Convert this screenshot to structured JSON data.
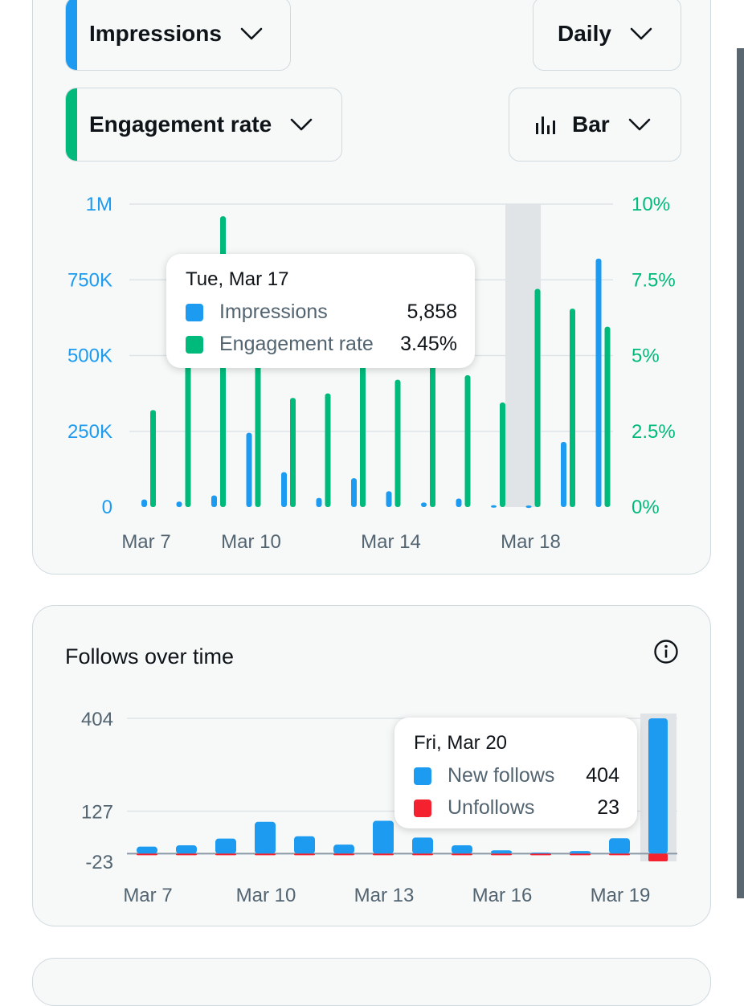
{
  "controls": {
    "metric_primary": {
      "label": "Impressions",
      "accent": "#1d9bf0"
    },
    "metric_secondary": {
      "label": "Engagement rate",
      "accent": "#00ba7c"
    },
    "interval": {
      "label": "Daily"
    },
    "chart_type": {
      "label": "Bar",
      "icon": "bar-chart-icon"
    }
  },
  "tooltip1": {
    "date": "Tue, Mar 17",
    "rows": [
      {
        "name": "Impressions",
        "value": "5,858",
        "color": "#1d9bf0"
      },
      {
        "name": "Engagement rate",
        "value": "3.45%",
        "color": "#00ba7c"
      }
    ]
  },
  "follows": {
    "title": "Follows over time",
    "info_icon": "info-icon"
  },
  "tooltip2": {
    "date": "Fri, Mar 20",
    "rows": [
      {
        "name": "New follows",
        "value": "404",
        "color": "#1d9bf0"
      },
      {
        "name": "Unfollows",
        "value": "23",
        "color": "#f4212e"
      }
    ]
  },
  "chart_data": [
    {
      "type": "bar",
      "categories": [
        "Mar 7",
        "Mar 8",
        "Mar 9",
        "Mar 10",
        "Mar 11",
        "Mar 12",
        "Mar 13",
        "Mar 14",
        "Mar 15",
        "Mar 16",
        "Mar 17",
        "Mar 18",
        "Mar 19",
        "Mar 20"
      ],
      "x_tick_labels": [
        "Mar 7",
        "Mar 10",
        "Mar 14",
        "Mar 18"
      ],
      "x_tick_indices": [
        0,
        3,
        7,
        11
      ],
      "series": [
        {
          "name": "Impressions",
          "axis": "left",
          "color": "#1d9bf0",
          "values": [
            25000,
            18000,
            38000,
            245000,
            115000,
            30000,
            95000,
            52000,
            15000,
            28000,
            5858,
            5000,
            215000,
            820000
          ]
        },
        {
          "name": "Engagement rate",
          "axis": "right",
          "color": "#00ba7c",
          "values": [
            3.2,
            5.3,
            9.6,
            5.0,
            3.6,
            3.75,
            5.3,
            4.2,
            5.3,
            4.35,
            3.45,
            7.2,
            6.55,
            5.95
          ]
        }
      ],
      "y_left": {
        "ylim": [
          0,
          1000000
        ],
        "ticks": [
          0,
          250000,
          500000,
          750000,
          1000000
        ],
        "tick_labels": [
          "0",
          "250K",
          "500K",
          "750K",
          "1M"
        ]
      },
      "y_right": {
        "ylim": [
          0,
          10
        ],
        "ticks": [
          0,
          2.5,
          5,
          7.5,
          10
        ],
        "tick_labels": [
          "0%",
          "2.5%",
          "5%",
          "7.5%",
          "10%"
        ]
      },
      "highlighted_category": "Mar 17",
      "grid": true
    },
    {
      "type": "bar",
      "categories": [
        "Mar 7",
        "Mar 8",
        "Mar 9",
        "Mar 10",
        "Mar 11",
        "Mar 12",
        "Mar 13",
        "Mar 14",
        "Mar 15",
        "Mar 16",
        "Mar 17",
        "Mar 18",
        "Mar 19",
        "Mar 20"
      ],
      "x_tick_labels": [
        "Mar 7",
        "Mar 10",
        "Mar 13",
        "Mar 16",
        "Mar 19"
      ],
      "x_tick_indices": [
        0,
        3,
        6,
        9,
        12
      ],
      "series": [
        {
          "name": "New follows",
          "color": "#1d9bf0",
          "values": [
            21,
            25,
            45,
            95,
            52,
            27,
            98,
            48,
            25,
            10,
            3,
            8,
            46,
            404
          ]
        },
        {
          "name": "Unfollows",
          "color": "#f4212e",
          "values": [
            -2,
            -1,
            -2,
            -3,
            -2,
            -1,
            -4,
            -4,
            -2,
            -3,
            -2,
            -1,
            -3,
            -23
          ]
        }
      ],
      "y": {
        "ylim": [
          -23,
          404
        ],
        "ticks": [
          -23,
          127,
          404
        ],
        "tick_labels": [
          "-23",
          "127",
          "404"
        ]
      },
      "highlighted_category": "Mar 20",
      "grid": true
    }
  ]
}
